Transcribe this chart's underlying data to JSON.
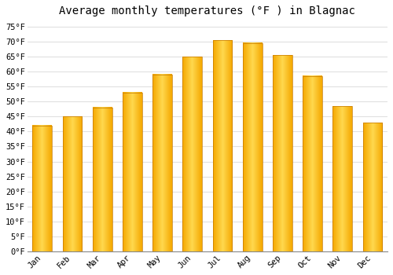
{
  "title": "Average monthly temperatures (°F ) in Blagnac",
  "months": [
    "Jan",
    "Feb",
    "Mar",
    "Apr",
    "May",
    "Jun",
    "Jul",
    "Aug",
    "Sep",
    "Oct",
    "Nov",
    "Dec"
  ],
  "values": [
    42,
    45,
    48,
    53,
    59,
    65,
    70.5,
    69.5,
    65.5,
    58.5,
    48.5,
    43
  ],
  "bar_color_center": "#FFD84E",
  "bar_color_edge": "#F5A800",
  "bar_edge_color": "#C47800",
  "ylim": [
    0,
    77
  ],
  "yticks": [
    0,
    5,
    10,
    15,
    20,
    25,
    30,
    35,
    40,
    45,
    50,
    55,
    60,
    65,
    70,
    75
  ],
  "background_color": "#ffffff",
  "grid_color": "#e0e0e0",
  "title_fontsize": 10,
  "tick_fontsize": 7.5,
  "font_family": "monospace",
  "bar_width": 0.65
}
